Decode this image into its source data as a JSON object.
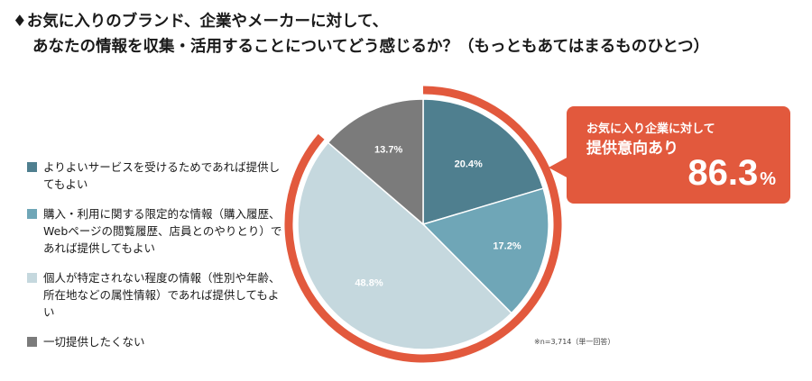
{
  "chart_data": {
    "type": "pie",
    "title_line1": "♦お気に入りのブランド、企業やメーカーに対して、",
    "title_line2": "あなたの情報を収集・活用することについてどう感じるか？（もっともあてはまるものひとつ）",
    "slices": [
      {
        "label": "よりよいサービスを受けるためであれば提供してもよい",
        "value": 20.4,
        "value_label": "20.4%",
        "color": "#4f7f8f"
      },
      {
        "label": "購入・利用に関する限定的な情報（購入履歴、Webページの閲覧履歴、店員とのやりとり）であれば提供してもよい",
        "value": 17.2,
        "value_label": "17.2%",
        "color": "#6fa6b7"
      },
      {
        "label": "個人が特定されない程度の情報（性別や年齢、所在地などの属性情報）であれば提供してもよい",
        "value": 48.8,
        "value_label": "48.8%",
        "color": "#c5d8de"
      },
      {
        "label": "一切提供したくない",
        "value": 13.7,
        "value_label": "13.7%",
        "color": "#7b7b7b"
      }
    ],
    "highlight": {
      "line1": "お気に入り企業に対して",
      "line2": "提供意向あり",
      "value": "86.3",
      "unit": "%",
      "color": "#e2593d"
    },
    "note": "※n=3,714（単一回答）"
  }
}
